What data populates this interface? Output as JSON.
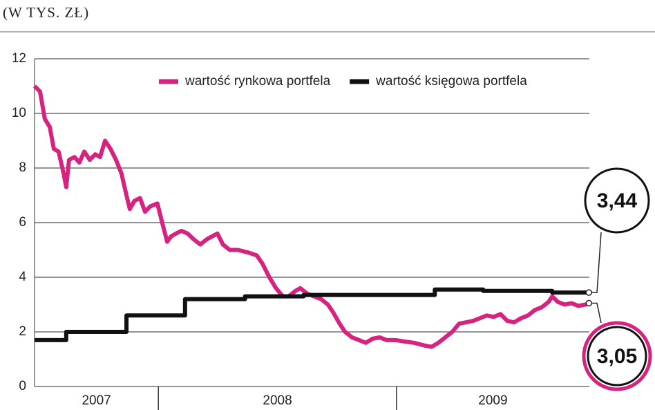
{
  "chart_data": {
    "type": "line",
    "subtitle": "(W TYS. ZŁ)",
    "ylim": [
      0,
      12
    ],
    "yticks": [
      0,
      2,
      4,
      6,
      8,
      10,
      12
    ],
    "grid": true,
    "legend": "top-right",
    "xlim": [
      2007.48,
      2009.81
    ],
    "x_periods": [
      {
        "label": "2007",
        "start": 2007.48,
        "end": 2008.0
      },
      {
        "label": "2008",
        "start": 2008.0,
        "end": 2009.0
      },
      {
        "label": "2009",
        "start": 2009.0,
        "end": 2009.81
      }
    ],
    "series": [
      {
        "name": "wartość rynkowa portfela",
        "color": "#d6237f",
        "x": [
          2007.48,
          2007.503,
          2007.523,
          2007.544,
          2007.561,
          2007.581,
          2007.602,
          2007.613,
          2007.625,
          2007.648,
          2007.668,
          2007.689,
          2007.712,
          2007.735,
          2007.755,
          2007.776,
          2007.799,
          2007.822,
          2007.845,
          2007.866,
          2007.88,
          2007.9,
          2007.923,
          2007.944,
          2007.967,
          2007.996,
          2008.016,
          2008.037,
          2008.054,
          2008.074,
          2008.097,
          2008.123,
          2008.147,
          2008.176,
          2008.205,
          2008.248,
          2008.271,
          2008.3,
          2008.335,
          2008.379,
          2008.413,
          2008.437,
          2008.466,
          2008.494,
          2008.523,
          2008.547,
          2008.576,
          2008.596,
          2008.625,
          2008.654,
          2008.683,
          2008.712,
          2008.735,
          2008.761,
          2008.784,
          2008.813,
          2008.842,
          2008.871,
          2008.9,
          2008.929,
          2008.958,
          2008.996,
          2009.031,
          2009.074,
          2009.118,
          2009.147,
          2009.176,
          2009.205,
          2009.234,
          2009.263,
          2009.292,
          2009.321,
          2009.35,
          2009.379,
          2009.408,
          2009.437,
          2009.466,
          2009.494,
          2009.523,
          2009.552,
          2009.581,
          2009.61,
          2009.639,
          2009.654,
          2009.677,
          2009.706,
          2009.735,
          2009.764,
          2009.793,
          2009.808
        ],
        "values": [
          11.0,
          10.8,
          9.8,
          9.5,
          8.7,
          8.6,
          7.8,
          7.3,
          8.3,
          8.4,
          8.2,
          8.6,
          8.3,
          8.5,
          8.4,
          9.0,
          8.7,
          8.3,
          7.8,
          7.0,
          6.5,
          6.8,
          6.9,
          6.4,
          6.6,
          6.7,
          6.0,
          5.3,
          5.5,
          5.6,
          5.7,
          5.6,
          5.4,
          5.2,
          5.4,
          5.6,
          5.2,
          5.0,
          5.0,
          4.9,
          4.8,
          4.5,
          4.0,
          3.6,
          3.3,
          3.3,
          3.5,
          3.6,
          3.4,
          3.3,
          3.2,
          3.0,
          2.7,
          2.3,
          2.0,
          1.8,
          1.7,
          1.6,
          1.75,
          1.8,
          1.7,
          1.7,
          1.65,
          1.6,
          1.5,
          1.45,
          1.6,
          1.8,
          2.0,
          2.3,
          2.35,
          2.4,
          2.5,
          2.6,
          2.55,
          2.65,
          2.4,
          2.35,
          2.5,
          2.6,
          2.8,
          2.9,
          3.1,
          3.3,
          3.1,
          3.0,
          3.05,
          2.95,
          3.0,
          3.05
        ],
        "value_labels": [
          null,
          null,
          null,
          null,
          null,
          null,
          null,
          null,
          null,
          null,
          null,
          null,
          null,
          null,
          null,
          null,
          null,
          null,
          null,
          null,
          null,
          null,
          null,
          null,
          null,
          null,
          null,
          null,
          null,
          null,
          null,
          null,
          null,
          null,
          null,
          null,
          null,
          null,
          null,
          null,
          null,
          null,
          null,
          null,
          null,
          null,
          null,
          null,
          null,
          null,
          null,
          null,
          null,
          null,
          null,
          null,
          null,
          null,
          null,
          null,
          null,
          null,
          null,
          null,
          null,
          null,
          null,
          null,
          null,
          null,
          null,
          null,
          null,
          null,
          null,
          null,
          null,
          null,
          null,
          null,
          null,
          null,
          null,
          null,
          null,
          null,
          null,
          null,
          null,
          "3,05"
        ]
      },
      {
        "name": "wartość księgowa portfela",
        "color": "#111111",
        "x": [
          2007.48,
          2007.613,
          2007.613,
          2007.866,
          2007.866,
          2008.112,
          2008.112,
          2008.364,
          2008.364,
          2008.61,
          2008.61,
          2009.161,
          2009.161,
          2009.364,
          2009.364,
          2009.654,
          2009.654,
          2009.808
        ],
        "values": [
          1.7,
          1.7,
          2.0,
          2.0,
          2.6,
          2.6,
          3.2,
          3.2,
          3.3,
          3.3,
          3.35,
          3.35,
          3.55,
          3.55,
          3.5,
          3.5,
          3.44,
          3.44
        ],
        "value_labels": [
          null,
          null,
          null,
          null,
          null,
          null,
          null,
          null,
          null,
          null,
          null,
          null,
          null,
          null,
          null,
          null,
          null,
          "3,44"
        ]
      }
    ]
  }
}
